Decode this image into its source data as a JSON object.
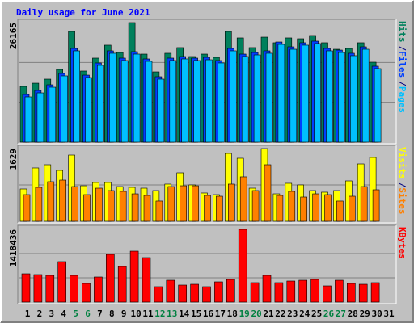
{
  "chart_data": [
    {
      "type": "bar",
      "title": "Daily usage for June 2021",
      "legend_separator": "/",
      "ylim": [
        0,
        26165
      ],
      "yticks": [
        26165
      ],
      "series": [
        {
          "name": "Hits",
          "color": "#00805c",
          "values": [
            12200,
            12900,
            13790,
            15910,
            24220,
            15560,
            18390,
            21220,
            19620,
            26165,
            19270,
            15380,
            19450,
            20690,
            18740,
            19270,
            18560,
            24220,
            22810,
            20690,
            22980,
            21750,
            22810,
            22630,
            23340,
            21750,
            20330,
            20510,
            21750,
            17500,
            null
          ]
        },
        {
          "name": "Files",
          "color": "#0040ff",
          "values": [
            10430,
            11310,
            12550,
            15030,
            20510,
            14670,
            17330,
            19980,
            18390,
            19800,
            18210,
            14320,
            18390,
            18740,
            18390,
            18560,
            17860,
            20510,
            19270,
            19620,
            19980,
            21920,
            20860,
            21750,
            22100,
            20510,
            20150,
            19450,
            20860,
            16620,
            null
          ]
        },
        {
          "name": "Pages",
          "color": "#00c0ff",
          "values": [
            9900,
            10780,
            12020,
            14500,
            19980,
            14140,
            16800,
            19450,
            17860,
            19270,
            17680,
            13790,
            17860,
            18210,
            17860,
            18030,
            17330,
            19980,
            18740,
            19090,
            19450,
            21390,
            20330,
            21220,
            21570,
            19980,
            19620,
            18920,
            20330,
            16090,
            null
          ]
        }
      ]
    },
    {
      "type": "bar",
      "legend_separator": "/",
      "ylim": [
        0,
        1629
      ],
      "yticks": [
        1629
      ],
      "series": [
        {
          "name": "Visits",
          "color": "#ffff00",
          "values": [
            724,
            1195,
            1267,
            1140,
            1484,
            796,
            869,
            869,
            778,
            760,
            742,
            688,
            833,
            1086,
            815,
            634,
            597,
            1520,
            1412,
            742,
            1629,
            615,
            851,
            815,
            688,
            652,
            688,
            905,
            1285,
            1430,
            null
          ]
        },
        {
          "name": "Sites",
          "color": "#ff8000",
          "values": [
            597,
            760,
            887,
            923,
            778,
            597,
            742,
            688,
            670,
            615,
            579,
            453,
            778,
            796,
            796,
            579,
            561,
            833,
            996,
            688,
            1267,
            579,
            670,
            543,
            615,
            597,
            453,
            561,
            778,
            706,
            null
          ]
        }
      ]
    },
    {
      "type": "bar",
      "ylim": [
        0,
        1418436
      ],
      "yticks": [
        1418436
      ],
      "categories": [
        "1",
        "2",
        "3",
        "4",
        "5",
        "6",
        "7",
        "8",
        "9",
        "10",
        "11",
        "12",
        "13",
        "14",
        "15",
        "16",
        "17",
        "18",
        "19",
        "20",
        "21",
        "22",
        "23",
        "24",
        "25",
        "26",
        "27",
        "28",
        "29",
        "30",
        "31"
      ],
      "category_colors": [
        "#000000",
        "#000000",
        "#000000",
        "#000000",
        "#008040",
        "#008040",
        "#000000",
        "#000000",
        "#000000",
        "#000000",
        "#000000",
        "#008040",
        "#008040",
        "#000000",
        "#000000",
        "#000000",
        "#000000",
        "#000000",
        "#008040",
        "#008040",
        "#000000",
        "#000000",
        "#000000",
        "#000000",
        "#000000",
        "#008040",
        "#008040",
        "#000000",
        "#000000",
        "#000000",
        "#000000"
      ],
      "series": [
        {
          "name": "KBytes",
          "color": "#ff0000",
          "values": [
            551600,
            535800,
            520100,
            788000,
            520100,
            362500,
            488600,
            929800,
            693400,
            992900,
            866800,
            299400,
            425500,
            331000,
            346700,
            299400,
            394000,
            441300,
            1418436,
            378200,
            520100,
            378200,
            409800,
            425500,
            441300,
            315200,
            425500,
            362500,
            346700,
            378200,
            null
          ]
        }
      ]
    }
  ]
}
